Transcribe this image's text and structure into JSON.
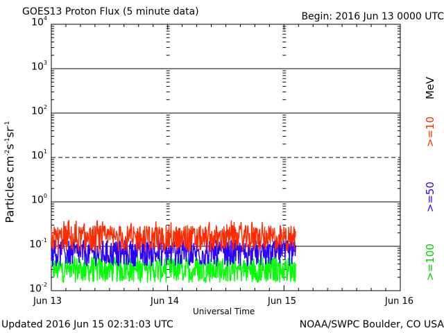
{
  "header": {
    "title": "GOES13 Proton Flux (5 minute data)",
    "begin": "Begin: 2016 Jun 13 0000 UTC"
  },
  "footer": {
    "updated": "Updated 2016 Jun 15 02:31:03 UTC",
    "credit": "NOAA/SWPC Boulder, CO USA"
  },
  "chart_data": {
    "type": "line",
    "title": "GOES13 Proton Flux (5 minute data)",
    "xlabel": "Universal Time",
    "ylabel": "Particles cm-2s-1sr-1",
    "yscale": "log",
    "ylim": [
      0.01,
      10000
    ],
    "xlim_days": [
      0,
      3
    ],
    "x_tick_labels": [
      "Jun 13",
      "Jun 14",
      "Jun 15",
      "Jun 16"
    ],
    "y_tick_labels": [
      {
        "base": "10",
        "exp": "4"
      },
      {
        "base": "10",
        "exp": "3"
      },
      {
        "base": "10",
        "exp": "2"
      },
      {
        "base": "10",
        "exp": "1"
      },
      {
        "base": "10",
        "exp": "0"
      },
      {
        "base": "10",
        "exp": "-1"
      },
      {
        "base": "10",
        "exp": "-2"
      }
    ],
    "legend_unit": "MeV",
    "series": [
      {
        "name": ">=10",
        "color": "#ff2a00",
        "typical": 0.15,
        "peak": 0.4
      },
      {
        "name": ">=50",
        "color": "#2a00ff",
        "typical": 0.07,
        "peak": 0.15
      },
      {
        "name": ">=100",
        "color": "#00ff00",
        "typical": 0.03,
        "peak": 0.06
      }
    ],
    "data_end_day": 2.1,
    "grid": true,
    "threshold_line": 10
  }
}
